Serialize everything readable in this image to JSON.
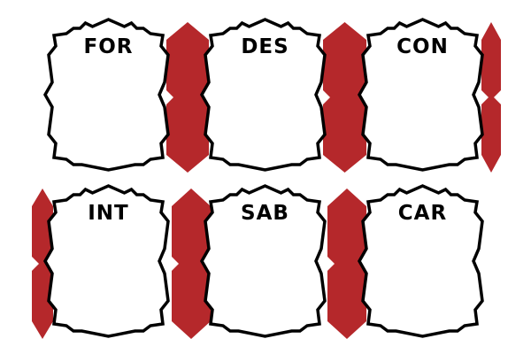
{
  "colors": {
    "ribbon": "#b5282b",
    "ribbon_shadow": "#8f1d20",
    "frame": "#000000",
    "paper": "#ffffff"
  },
  "stats": [
    {
      "abbr": "FOR",
      "value": ""
    },
    {
      "abbr": "DES",
      "value": ""
    },
    {
      "abbr": "CON",
      "value": ""
    },
    {
      "abbr": "INT",
      "value": ""
    },
    {
      "abbr": "SAB",
      "value": ""
    },
    {
      "abbr": "CAR",
      "value": ""
    }
  ]
}
